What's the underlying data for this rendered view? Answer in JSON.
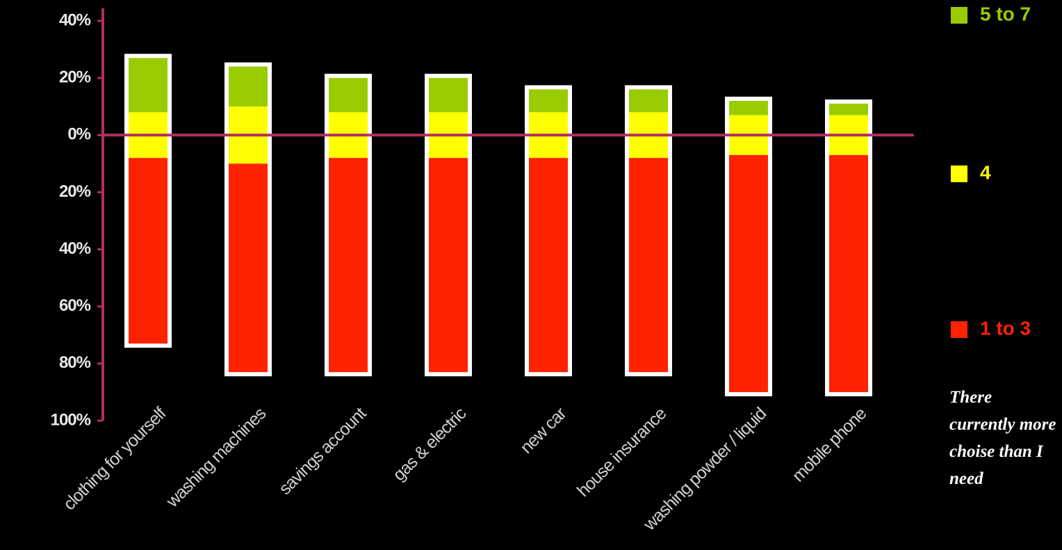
{
  "chart_data": {
    "type": "diverging_bar",
    "categories": [
      "clothing for yourself",
      "washing machines",
      "savings account",
      "gas & electric",
      "new car",
      "house insurance",
      "washing powder / liquid",
      "mobile phone"
    ],
    "series": [
      {
        "name": "5 to 7",
        "color": "#99cc00",
        "values": [
          19,
          14,
          12,
          12,
          8,
          8,
          5,
          4
        ]
      },
      {
        "name": "4",
        "color": "#ffff00",
        "values": [
          16,
          20,
          16,
          16,
          16,
          16,
          14,
          14
        ]
      },
      {
        "name": "1 to 3",
        "color": "#ff2200",
        "values": [
          65,
          73,
          75,
          75,
          75,
          75,
          83,
          83
        ]
      }
    ],
    "ylim": [
      -100,
      40
    ],
    "yticks": [
      {
        "value": 40,
        "label": "40%"
      },
      {
        "value": 20,
        "label": "20%"
      },
      {
        "value": 0,
        "label": "0%"
      },
      {
        "value": -20,
        "label": "20%"
      },
      {
        "value": -40,
        "label": "40%"
      },
      {
        "value": -60,
        "label": "60%"
      },
      {
        "value": -80,
        "label": "80%"
      },
      {
        "value": -100,
        "label": "100%"
      }
    ],
    "annotation": "There currently more choise than I need",
    "legend": "right"
  }
}
